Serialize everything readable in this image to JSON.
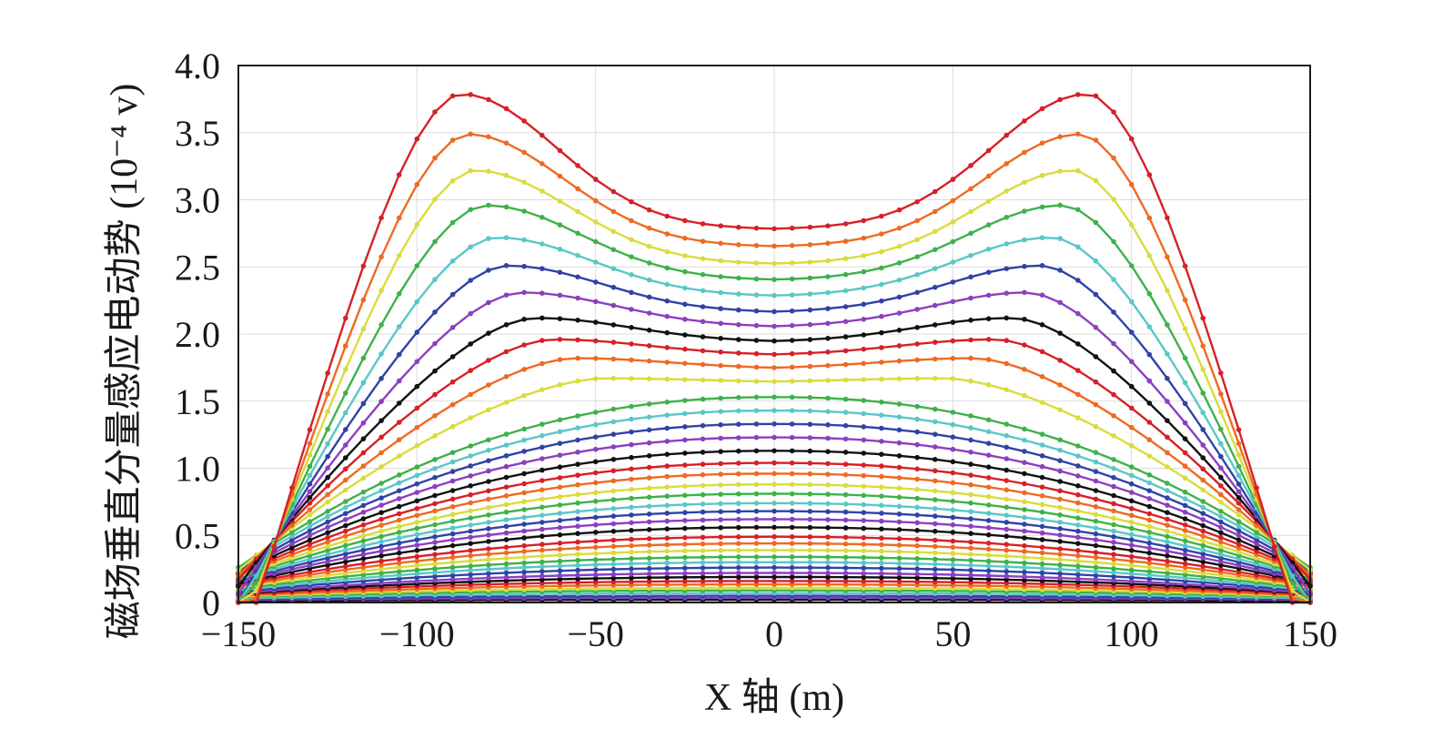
{
  "chart_data": {
    "type": "line",
    "title": "",
    "xlabel": "X 轴 (m)",
    "ylabel": "磁场垂直分量感应电动势 (10⁻⁴ v)",
    "xlim": [
      -150,
      150
    ],
    "ylim": [
      0,
      4.0
    ],
    "xticks": [
      -150,
      -100,
      -50,
      0,
      50,
      100,
      150
    ],
    "yticks": [
      0,
      0.5,
      1.0,
      1.5,
      2.0,
      2.5,
      3.0,
      3.5,
      4.0
    ],
    "xtick_labels": [
      "−150",
      "−100",
      "−50",
      "0",
      "50",
      "100",
      "150"
    ],
    "ytick_labels": [
      "0",
      "0.5",
      "1.0",
      "1.5",
      "2.0",
      "2.5",
      "3.0",
      "3.5",
      "4.0"
    ],
    "grid": true,
    "legend": "none",
    "marker": "dot",
    "sample_x_step": 5,
    "series_colors_cycle": [
      "#d62028",
      "#ee6a23",
      "#d9dc3c",
      "#3fb14a",
      "#5bc6c8",
      "#2f43a6",
      "#8c3fbf",
      "#111111"
    ],
    "series_profile_model": "symmetric profile: value(x) = center + (peak - center) * exp(-((|x| - peak_x)/width)^2) towards edges falling to edge value at |x|=150",
    "series": [
      {
        "center": 2.78,
        "peak": 3.79,
        "peak_x": 88,
        "edge": 0.45
      },
      {
        "center": 2.65,
        "peak": 3.49,
        "peak_x": 86,
        "edge": 0.42
      },
      {
        "center": 2.52,
        "peak": 3.22,
        "peak_x": 84,
        "edge": 0.4
      },
      {
        "center": 2.4,
        "peak": 2.96,
        "peak_x": 81,
        "edge": 0.38
      },
      {
        "center": 2.28,
        "peak": 2.72,
        "peak_x": 78,
        "edge": 0.36
      },
      {
        "center": 2.16,
        "peak": 2.51,
        "peak_x": 75,
        "edge": 0.34
      },
      {
        "center": 2.05,
        "peak": 2.31,
        "peak_x": 71,
        "edge": 0.32
      },
      {
        "center": 1.94,
        "peak": 2.12,
        "peak_x": 67,
        "edge": 0.3
      },
      {
        "center": 1.84,
        "peak": 1.96,
        "peak_x": 62,
        "edge": 0.29
      },
      {
        "center": 1.74,
        "peak": 1.82,
        "peak_x": 56,
        "edge": 0.28
      },
      {
        "center": 1.64,
        "peak": 1.67,
        "peak_x": 48,
        "edge": 0.27
      },
      {
        "center": 1.53,
        "peak": 1.53,
        "peak_x": 0,
        "edge": 0.26
      },
      {
        "center": 1.43,
        "peak": 1.43,
        "peak_x": 0,
        "edge": 0.25
      },
      {
        "center": 1.33,
        "peak": 1.33,
        "peak_x": 0,
        "edge": 0.24
      },
      {
        "center": 1.23,
        "peak": 1.23,
        "peak_x": 0,
        "edge": 0.23
      },
      {
        "center": 1.13,
        "peak": 1.13,
        "peak_x": 0,
        "edge": 0.22
      },
      {
        "center": 1.04,
        "peak": 1.04,
        "peak_x": 0,
        "edge": 0.21
      },
      {
        "center": 0.96,
        "peak": 0.96,
        "peak_x": 0,
        "edge": 0.2
      },
      {
        "center": 0.88,
        "peak": 0.88,
        "peak_x": 0,
        "edge": 0.19
      },
      {
        "center": 0.81,
        "peak": 0.81,
        "peak_x": 0,
        "edge": 0.18
      },
      {
        "center": 0.74,
        "peak": 0.74,
        "peak_x": 0,
        "edge": 0.17
      },
      {
        "center": 0.68,
        "peak": 0.68,
        "peak_x": 0,
        "edge": 0.16
      },
      {
        "center": 0.62,
        "peak": 0.62,
        "peak_x": 0,
        "edge": 0.15
      },
      {
        "center": 0.56,
        "peak": 0.56,
        "peak_x": 0,
        "edge": 0.14
      },
      {
        "center": 0.49,
        "peak": 0.49,
        "peak_x": 0,
        "edge": 0.13
      },
      {
        "center": 0.44,
        "peak": 0.44,
        "peak_x": 0,
        "edge": 0.12
      },
      {
        "center": 0.39,
        "peak": 0.39,
        "peak_x": 0,
        "edge": 0.11
      },
      {
        "center": 0.34,
        "peak": 0.34,
        "peak_x": 0,
        "edge": 0.1
      },
      {
        "center": 0.3,
        "peak": 0.3,
        "peak_x": 0,
        "edge": 0.09
      },
      {
        "center": 0.26,
        "peak": 0.26,
        "peak_x": 0,
        "edge": 0.08
      },
      {
        "center": 0.22,
        "peak": 0.22,
        "peak_x": 0,
        "edge": 0.07
      },
      {
        "center": 0.19,
        "peak": 0.19,
        "peak_x": 0,
        "edge": 0.065
      },
      {
        "center": 0.16,
        "peak": 0.16,
        "peak_x": 0,
        "edge": 0.06
      },
      {
        "center": 0.135,
        "peak": 0.135,
        "peak_x": 0,
        "edge": 0.05
      },
      {
        "center": 0.11,
        "peak": 0.11,
        "peak_x": 0,
        "edge": 0.045
      },
      {
        "center": 0.09,
        "peak": 0.09,
        "peak_x": 0,
        "edge": 0.04
      },
      {
        "center": 0.07,
        "peak": 0.07,
        "peak_x": 0,
        "edge": 0.03
      },
      {
        "center": 0.05,
        "peak": 0.05,
        "peak_x": 0,
        "edge": 0.025
      },
      {
        "center": 0.035,
        "peak": 0.035,
        "peak_x": 0,
        "edge": 0.02
      },
      {
        "center": 0.02,
        "peak": 0.02,
        "peak_x": 0,
        "edge": 0.012
      }
    ]
  }
}
